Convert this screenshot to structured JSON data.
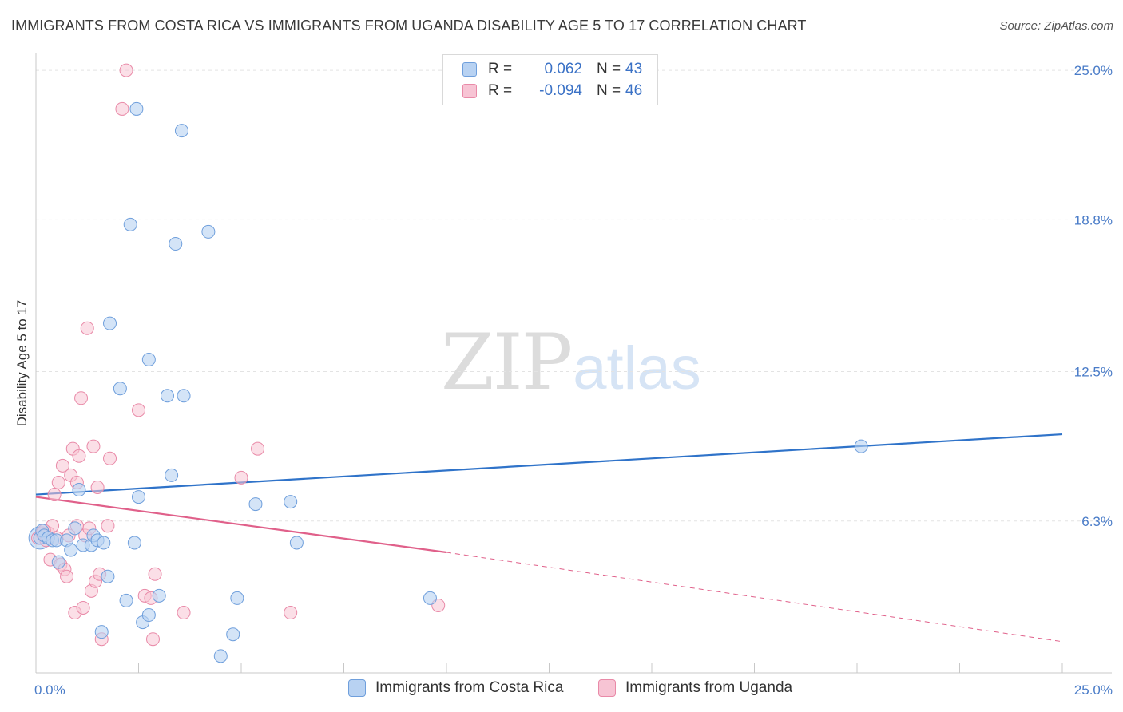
{
  "header": {
    "title": "IMMIGRANTS FROM COSTA RICA VS IMMIGRANTS FROM UGANDA DISABILITY AGE 5 TO 17 CORRELATION CHART",
    "source": "Source: ZipAtlas.com"
  },
  "watermark": {
    "zip": "ZIP",
    "atlas": "atlas"
  },
  "colors": {
    "blue_fill": "#b8d2f2",
    "blue_stroke": "#6f9fdc",
    "blue_line": "#2f73c9",
    "pink_fill": "#f7c4d4",
    "pink_stroke": "#e98aa8",
    "pink_line": "#e0608a",
    "tick_text": "#4a7cc8",
    "grid": "#e3e3e3"
  },
  "legend": {
    "rows": [
      {
        "r_label": "R =",
        "r_value": "0.062",
        "n_label": "N =",
        "n_value": "43",
        "series": "blue"
      },
      {
        "r_label": "R =",
        "r_value": "-0.094",
        "n_label": "N =",
        "n_value": "46",
        "series": "pink"
      }
    ]
  },
  "bottom_legend": {
    "items": [
      {
        "label": "Immigrants from Costa Rica",
        "series": "blue"
      },
      {
        "label": "Immigrants from Uganda",
        "series": "pink"
      }
    ]
  },
  "chart_data": {
    "type": "scatter",
    "title": "IMMIGRANTS FROM COSTA RICA VS IMMIGRANTS FROM UGANDA DISABILITY AGE 5 TO 17 CORRELATION CHART",
    "xlabel": "",
    "ylabel": "Disability Age 5 to 17",
    "xlim": [
      0,
      25
    ],
    "ylim": [
      0,
      25.6
    ],
    "x_tick_labels": [
      "0.0%",
      "25.0%"
    ],
    "y_ticks": [
      6.3,
      12.5,
      18.8,
      25.0
    ],
    "y_tick_labels": [
      "6.3%",
      "12.5%",
      "18.8%",
      "25.0%"
    ],
    "grid": true,
    "series": [
      {
        "name": "Immigrants from Costa Rica",
        "color": "#6f9fdc",
        "points": [
          [
            0.1,
            5.6
          ],
          [
            0.15,
            5.9
          ],
          [
            0.2,
            5.7
          ],
          [
            0.3,
            5.6
          ],
          [
            0.4,
            5.5
          ],
          [
            0.5,
            5.5
          ],
          [
            0.55,
            4.6
          ],
          [
            0.75,
            5.5
          ],
          [
            0.85,
            5.1
          ],
          [
            0.95,
            6.0
          ],
          [
            1.05,
            7.6
          ],
          [
            1.15,
            5.3
          ],
          [
            1.35,
            5.3
          ],
          [
            1.4,
            5.7
          ],
          [
            1.5,
            5.5
          ],
          [
            1.65,
            5.4
          ],
          [
            1.75,
            4.0
          ],
          [
            1.6,
            1.7
          ],
          [
            1.8,
            14.5
          ],
          [
            2.05,
            11.8
          ],
          [
            2.2,
            3.0
          ],
          [
            2.4,
            5.4
          ],
          [
            2.5,
            7.3
          ],
          [
            2.45,
            23.4
          ],
          [
            2.3,
            18.6
          ],
          [
            2.6,
            2.1
          ],
          [
            2.75,
            2.4
          ],
          [
            2.75,
            13.0
          ],
          [
            3.0,
            3.2
          ],
          [
            3.2,
            11.5
          ],
          [
            3.3,
            8.2
          ],
          [
            3.4,
            17.8
          ],
          [
            3.55,
            22.5
          ],
          [
            3.6,
            11.5
          ],
          [
            4.2,
            18.3
          ],
          [
            4.5,
            0.7
          ],
          [
            4.8,
            1.6
          ],
          [
            4.9,
            3.1
          ],
          [
            5.35,
            7.0
          ],
          [
            6.2,
            7.1
          ],
          [
            6.35,
            5.4
          ],
          [
            9.6,
            3.1
          ],
          [
            20.1,
            9.4
          ]
        ],
        "trend": {
          "x": [
            0,
            25
          ],
          "y": [
            7.4,
            9.9
          ]
        }
      },
      {
        "name": "Immigrants from Uganda",
        "color": "#e98aa8",
        "points": [
          [
            0.05,
            5.6
          ],
          [
            0.15,
            5.8
          ],
          [
            0.25,
            5.5
          ],
          [
            0.3,
            5.8
          ],
          [
            0.35,
            4.7
          ],
          [
            0.4,
            6.1
          ],
          [
            0.45,
            7.4
          ],
          [
            0.55,
            7.9
          ],
          [
            0.6,
            4.5
          ],
          [
            0.65,
            8.6
          ],
          [
            0.7,
            4.3
          ],
          [
            0.75,
            4.0
          ],
          [
            0.8,
            5.7
          ],
          [
            0.85,
            8.2
          ],
          [
            0.9,
            9.3
          ],
          [
            0.95,
            2.5
          ],
          [
            1.0,
            7.9
          ],
          [
            1.05,
            9.0
          ],
          [
            1.1,
            11.4
          ],
          [
            1.15,
            2.7
          ],
          [
            1.2,
            5.7
          ],
          [
            1.25,
            14.3
          ],
          [
            1.3,
            6.0
          ],
          [
            1.35,
            3.4
          ],
          [
            1.4,
            9.4
          ],
          [
            1.45,
            3.8
          ],
          [
            1.5,
            7.7
          ],
          [
            1.55,
            4.1
          ],
          [
            1.6,
            1.4
          ],
          [
            1.75,
            6.1
          ],
          [
            1.8,
            8.9
          ],
          [
            2.1,
            23.4
          ],
          [
            2.2,
            25.0
          ],
          [
            2.5,
            10.9
          ],
          [
            2.65,
            3.2
          ],
          [
            2.8,
            3.1
          ],
          [
            2.85,
            1.4
          ],
          [
            2.9,
            4.1
          ],
          [
            3.6,
            2.5
          ],
          [
            5.0,
            8.1
          ],
          [
            5.4,
            9.3
          ],
          [
            6.2,
            2.5
          ],
          [
            9.8,
            2.8
          ],
          [
            0.2,
            5.9
          ],
          [
            0.5,
            5.6
          ],
          [
            1.0,
            6.1
          ]
        ],
        "trend": {
          "x": [
            0,
            10.0
          ],
          "y": [
            7.3,
            5.0
          ]
        },
        "trend_extension": {
          "x": [
            10.0,
            25
          ],
          "y": [
            5.0,
            1.3
          ]
        }
      }
    ]
  }
}
